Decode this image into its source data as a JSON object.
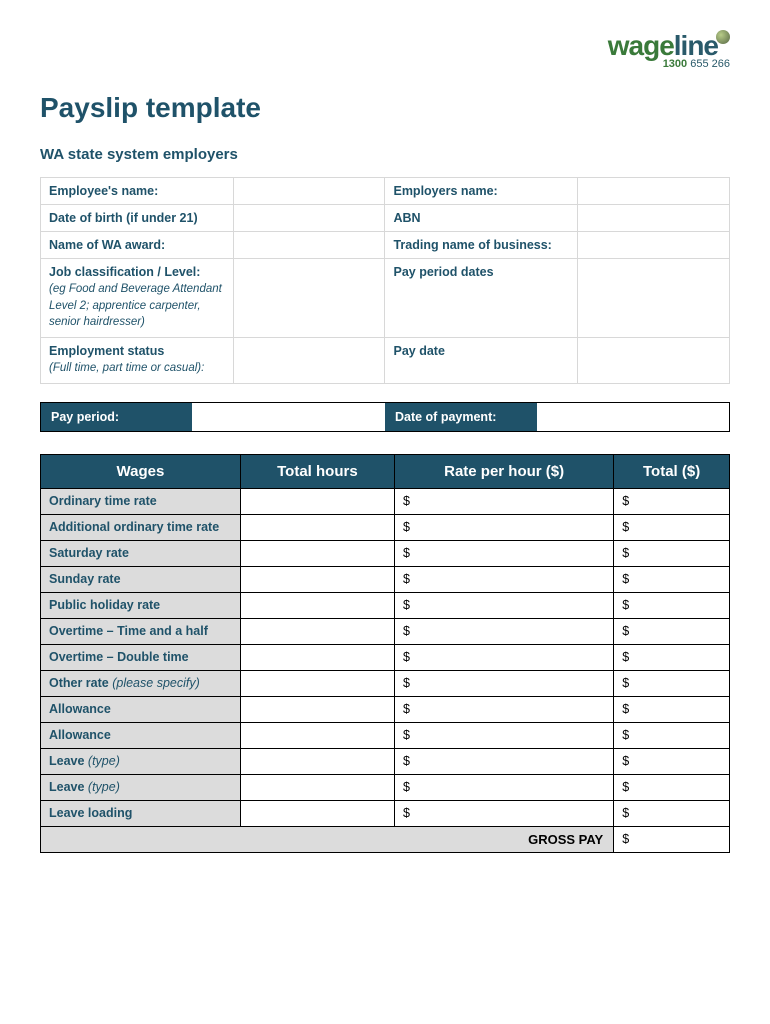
{
  "logo": {
    "word1": "wage",
    "word2": "line",
    "phone_green": "1300",
    "phone_rest": " 655 266"
  },
  "title": "Payslip template",
  "subtitle": "WA state system employers",
  "info": {
    "rows": [
      {
        "l1": "Employee's name:",
        "h1": "",
        "l2": "Employers name:",
        "h2": ""
      },
      {
        "l1": "Date of birth (if under 21)",
        "h1": "",
        "l2": "ABN",
        "h2": ""
      },
      {
        "l1": "Name of WA award:",
        "h1": "",
        "l2": "Trading name of business:",
        "h2": ""
      },
      {
        "l1": "Job classification / Level:",
        "h1": "(eg Food and Beverage Attendant Level 2; apprentice carpenter, senior hairdresser)",
        "l2": "Pay period dates",
        "h2": ""
      },
      {
        "l1": "Employment status",
        "h1": "(Full time, part time or casual):",
        "l2": "Pay date",
        "h2": ""
      }
    ]
  },
  "period": {
    "label1": "Pay period:",
    "label2": "Date of payment:"
  },
  "wages": {
    "headers": [
      "Wages",
      "Total hours",
      "Rate per hour ($)",
      "Total ($)"
    ],
    "rows": [
      {
        "label": "Ordinary time rate",
        "hint": ""
      },
      {
        "label": "Additional ordinary time rate",
        "hint": ""
      },
      {
        "label": "Saturday rate",
        "hint": ""
      },
      {
        "label": "Sunday rate",
        "hint": ""
      },
      {
        "label": "Public holiday rate",
        "hint": ""
      },
      {
        "label": "Overtime – Time and a half",
        "hint": ""
      },
      {
        "label": "Overtime – Double time",
        "hint": ""
      },
      {
        "label": "Other rate ",
        "hint": "(please specify)"
      },
      {
        "label": "Allowance",
        "hint": ""
      },
      {
        "label": "Allowance",
        "hint": ""
      },
      {
        "label": "Leave ",
        "hint": "(type)"
      },
      {
        "label": "Leave ",
        "hint": "(type)"
      },
      {
        "label": "Leave loading",
        "hint": ""
      }
    ],
    "currency": "$",
    "gross_label": "GROSS PAY"
  }
}
